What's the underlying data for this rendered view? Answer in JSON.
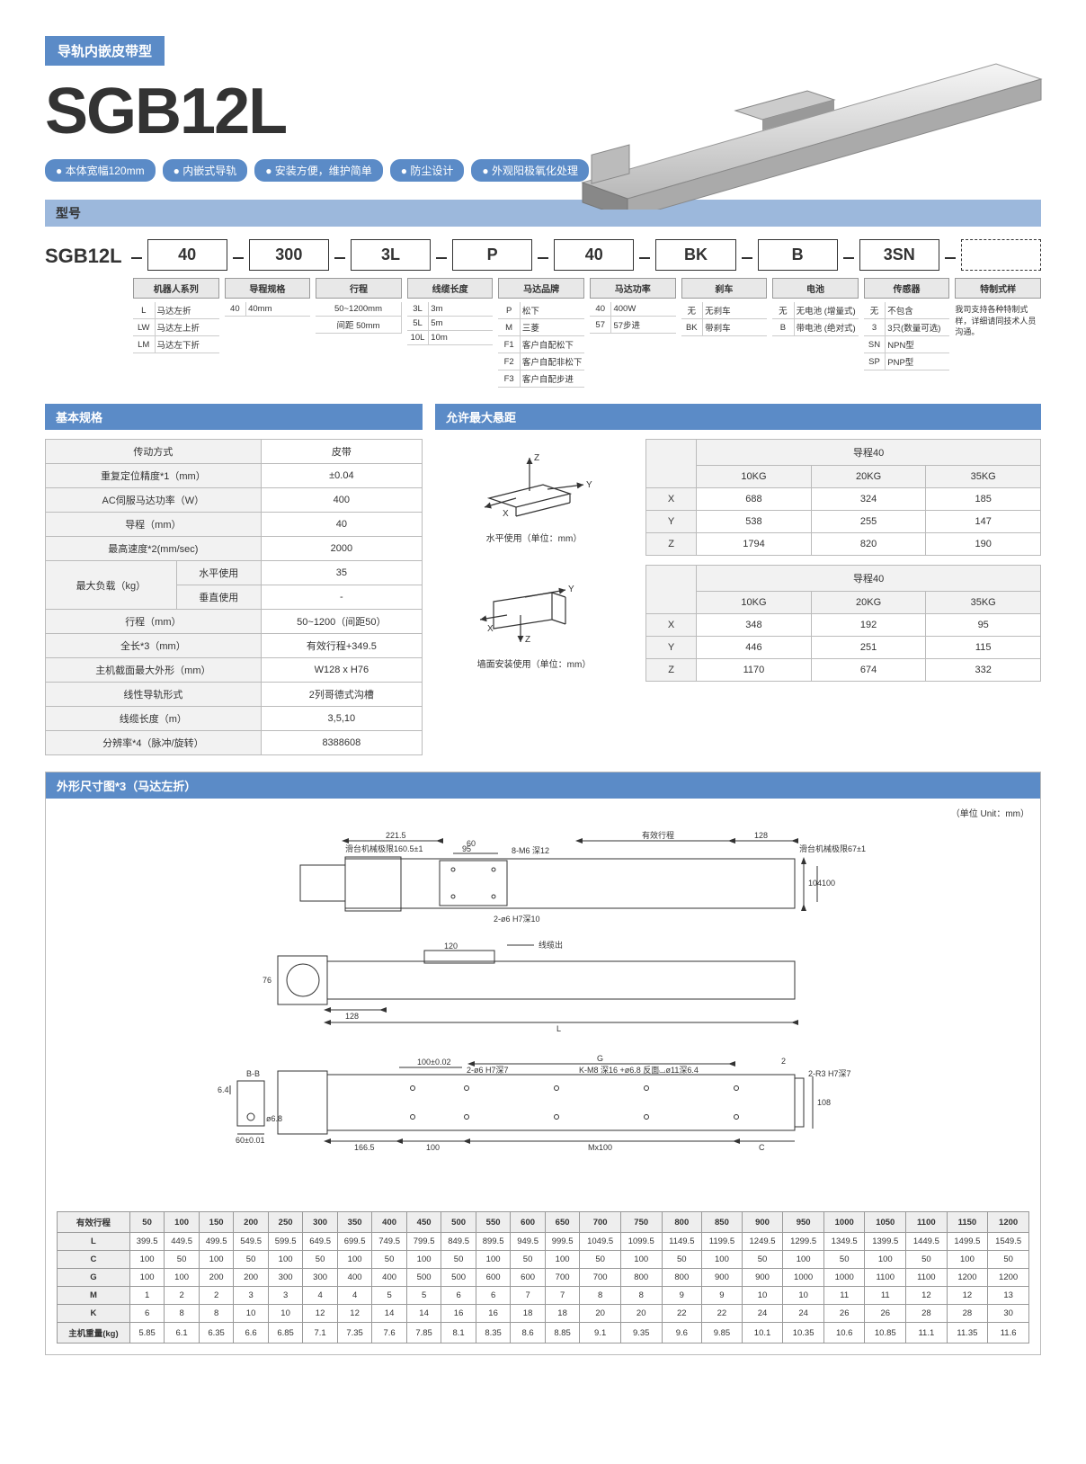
{
  "subtitle": "导轨内嵌皮带型",
  "product": "SGB12L",
  "pills": [
    "● 本体宽幅120mm",
    "● 内嵌式导轨",
    "● 安装方便，维护简单",
    "● 防尘设计",
    "● 外观阳极氧化处理"
  ],
  "xh": "型号",
  "model_lead": "SGB12L",
  "model_boxes": [
    "40",
    "300",
    "3L",
    "P",
    "40",
    "BK",
    "B",
    "3SN",
    ""
  ],
  "mcols": [
    {
      "head": "机器人系列",
      "rows": [
        [
          "L",
          "马达左折"
        ],
        [
          "LW",
          "马达左上折"
        ],
        [
          "LM",
          "马达左下折"
        ]
      ]
    },
    {
      "head": "导程规格",
      "rows": [
        [
          "40",
          "40mm"
        ]
      ]
    },
    {
      "head": "行程",
      "rows": [
        [
          "",
          "50~1200mm"
        ],
        [
          "",
          "间距 50mm"
        ]
      ]
    },
    {
      "head": "线缆长度",
      "rows": [
        [
          "3L",
          "3m"
        ],
        [
          "5L",
          "5m"
        ],
        [
          "10L",
          "10m"
        ]
      ]
    },
    {
      "head": "马达品牌",
      "rows": [
        [
          "P",
          "松下"
        ],
        [
          "M",
          "三菱"
        ],
        [
          "F1",
          "客户自配松下"
        ],
        [
          "F2",
          "客户自配非松下"
        ],
        [
          "F3",
          "客户自配步进"
        ]
      ]
    },
    {
      "head": "马达功率",
      "rows": [
        [
          "40",
          "400W"
        ],
        [
          "57",
          "57步进"
        ]
      ]
    },
    {
      "head": "刹车",
      "rows": [
        [
          "无",
          "无刹车"
        ],
        [
          "BK",
          "带刹车"
        ]
      ]
    },
    {
      "head": "电池",
      "rows": [
        [
          "无",
          "无电池\n(增量式)"
        ],
        [
          "B",
          "带电池\n(绝对式)"
        ]
      ]
    },
    {
      "head": "传感器",
      "rows": [
        [
          "无",
          "不包含"
        ],
        [
          "3",
          "3只(数量可选)"
        ],
        [
          "SN",
          "NPN型"
        ],
        [
          "SP",
          "PNP型"
        ]
      ]
    },
    {
      "head": "特制式样",
      "note": "我司支持各种特制式样，详细请同技术人员沟通。"
    }
  ],
  "basic": {
    "title": "基本规格",
    "rows": [
      [
        "传动方式",
        "皮带"
      ],
      [
        "重复定位精度*1（mm）",
        "±0.04"
      ],
      [
        "AC伺服马达功率（W）",
        "400"
      ],
      [
        "导程（mm）",
        "40"
      ],
      [
        "最高速度*2(mm/sec)",
        "2000"
      ]
    ],
    "load": {
      "label": "最大负载（kg）",
      "h": "水平使用",
      "hv": "35",
      "v": "垂直使用",
      "vv": "-"
    },
    "rows2": [
      [
        "行程（mm）",
        "50~1200（间距50）"
      ],
      [
        "全长*3（mm）",
        "有效行程+349.5"
      ],
      [
        "主机截面最大外形（mm）",
        "W128 x H76"
      ],
      [
        "线性导轨形式",
        "2列哥德式沟槽"
      ],
      [
        "线缆长度（m）",
        "3,5,10"
      ],
      [
        "分辨率*4（脉冲/旋转）",
        "8388608"
      ]
    ]
  },
  "overhang": {
    "title": "允许最大悬距",
    "fig1": "水平使用（单位：mm）",
    "fig2": "墙面安装使用（单位：mm）",
    "head": "导程40",
    "cols": [
      "10KG",
      "20KG",
      "35KG"
    ],
    "t1": [
      [
        "X",
        "688",
        "324",
        "185"
      ],
      [
        "Y",
        "538",
        "255",
        "147"
      ],
      [
        "Z",
        "1794",
        "820",
        "190"
      ]
    ],
    "t2": [
      [
        "X",
        "348",
        "192",
        "95"
      ],
      [
        "Y",
        "446",
        "251",
        "115"
      ],
      [
        "Z",
        "1170",
        "674",
        "332"
      ]
    ]
  },
  "dim": {
    "title": "外形尺寸图*3（马达左折）",
    "unit": "（单位 Unit：mm）",
    "labels": {
      "l221": "221.5",
      "eff": "有效行程",
      "l128": "128",
      "limit1": "滑台机械极限160.5±1",
      "limit2": "滑台机械极限67±1",
      "l95": "95",
      "l60": "60",
      "m6": "8-M6 深12",
      "phi6": "2-ø6 H7深10",
      "w120": "120",
      "h76": "76",
      "w128b": "128",
      "L": "L",
      "cable": "线缆出",
      "h104": "104",
      "w100": "100",
      "l100g": "100±0.02",
      "G": "G",
      "phi6b": "2-ø6 H7深7",
      "m8": "K-M8 深16 +ø6.8 反面⌴ø11深6.4",
      "c2": "2",
      "r3": "2-R3 H7深7",
      "bb": "B-B",
      "gasket": "6.4",
      "l60b": "60±0.01",
      "phi68": "ø6.8",
      "l166": "166.5",
      "l100b": "100",
      "mx": "Mx100",
      "C": "C",
      "h108": "108"
    },
    "bigcols": [
      "有效行程",
      "50",
      "100",
      "150",
      "200",
      "250",
      "300",
      "350",
      "400",
      "450",
      "500",
      "550",
      "600",
      "650",
      "700",
      "750",
      "800",
      "850",
      "900",
      "950",
      "1000",
      "1050",
      "1100",
      "1150",
      "1200"
    ],
    "bigrows": [
      [
        "L",
        "399.5",
        "449.5",
        "499.5",
        "549.5",
        "599.5",
        "649.5",
        "699.5",
        "749.5",
        "799.5",
        "849.5",
        "899.5",
        "949.5",
        "999.5",
        "1049.5",
        "1099.5",
        "1149.5",
        "1199.5",
        "1249.5",
        "1299.5",
        "1349.5",
        "1399.5",
        "1449.5",
        "1499.5",
        "1549.5"
      ],
      [
        "C",
        "100",
        "50",
        "100",
        "50",
        "100",
        "50",
        "100",
        "50",
        "100",
        "50",
        "100",
        "50",
        "100",
        "50",
        "100",
        "50",
        "100",
        "50",
        "100",
        "50",
        "100",
        "50",
        "100",
        "50"
      ],
      [
        "G",
        "100",
        "100",
        "200",
        "200",
        "300",
        "300",
        "400",
        "400",
        "500",
        "500",
        "600",
        "600",
        "700",
        "700",
        "800",
        "800",
        "900",
        "900",
        "1000",
        "1000",
        "1100",
        "1100",
        "1200",
        "1200"
      ],
      [
        "M",
        "1",
        "2",
        "2",
        "3",
        "3",
        "4",
        "4",
        "5",
        "5",
        "6",
        "6",
        "7",
        "7",
        "8",
        "8",
        "9",
        "9",
        "10",
        "10",
        "11",
        "11",
        "12",
        "12",
        "13"
      ],
      [
        "K",
        "6",
        "8",
        "8",
        "10",
        "10",
        "12",
        "12",
        "14",
        "14",
        "16",
        "16",
        "18",
        "18",
        "20",
        "20",
        "22",
        "22",
        "24",
        "24",
        "26",
        "26",
        "28",
        "28",
        "30"
      ],
      [
        "主机重量(kg)",
        "5.85",
        "6.1",
        "6.35",
        "6.6",
        "6.85",
        "7.1",
        "7.35",
        "7.6",
        "7.85",
        "8.1",
        "8.35",
        "8.6",
        "8.85",
        "9.1",
        "9.35",
        "9.6",
        "9.85",
        "10.1",
        "10.35",
        "10.6",
        "10.85",
        "11.1",
        "11.35",
        "11.6"
      ]
    ]
  },
  "colors": {
    "blue": "#5b8bc7",
    "ltblue": "#9cb8dc",
    "border": "#bbb"
  }
}
